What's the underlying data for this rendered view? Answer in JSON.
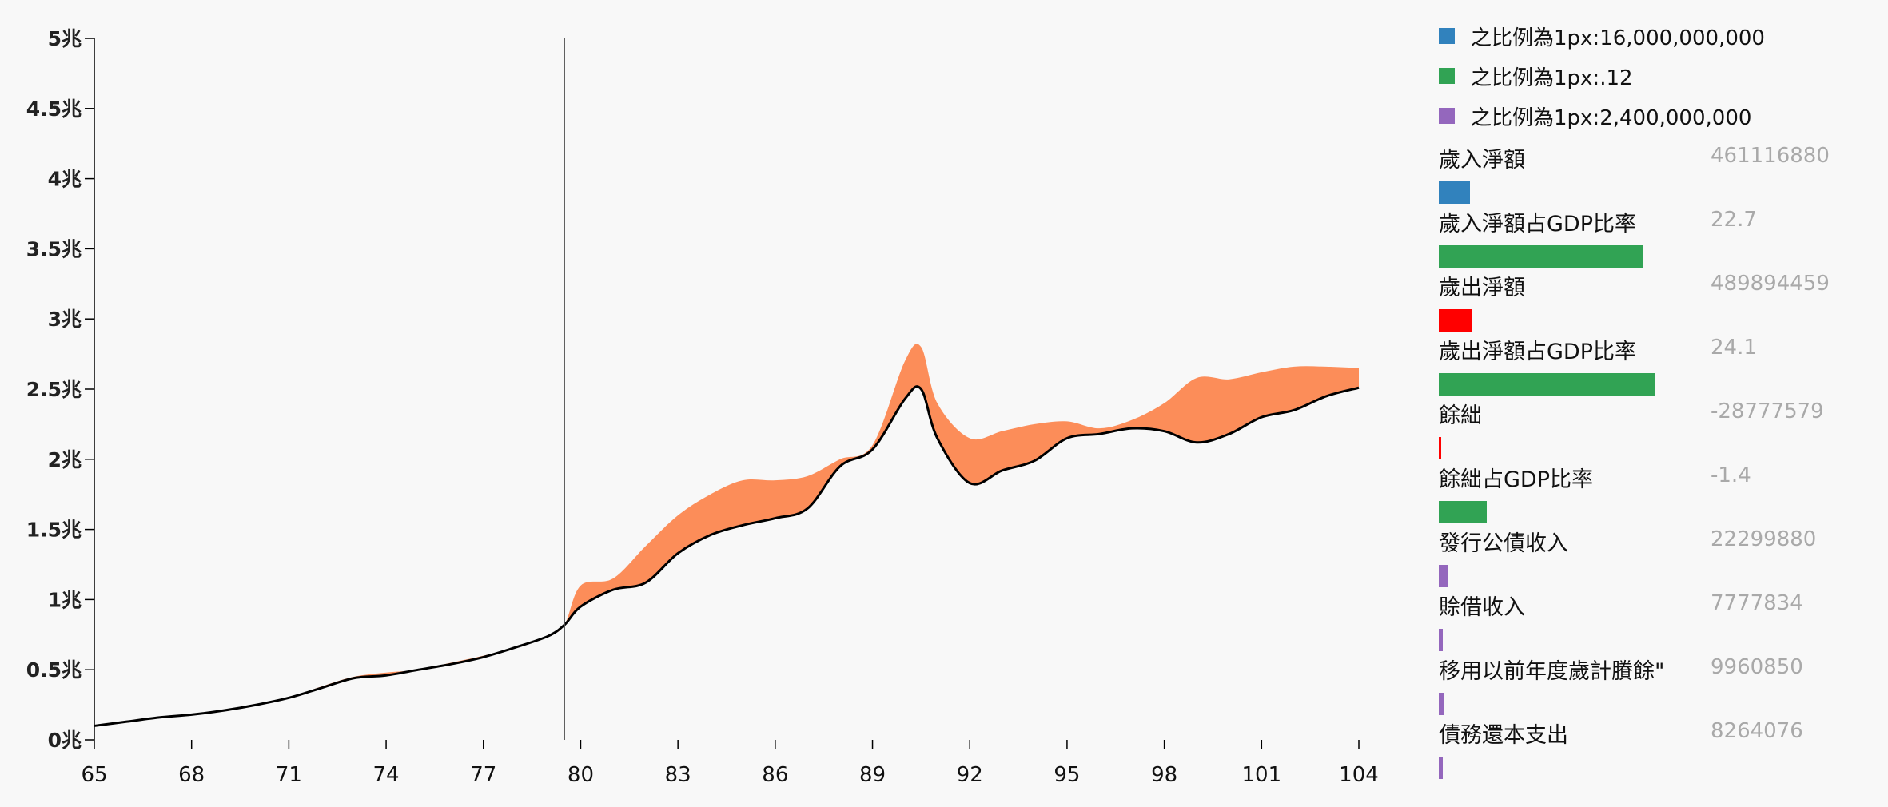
{
  "chart_data": {
    "type": "area",
    "y_axis": {
      "ticks": [
        "0兆",
        "0.5兆",
        "1兆",
        "1.5兆",
        "2兆",
        "2.5兆",
        "3兆",
        "3.5兆",
        "4兆",
        "4.5兆",
        "5兆"
      ],
      "min": 0,
      "max": 5,
      "unit": "兆"
    },
    "x_axis": {
      "ticks": [
        "65",
        "68",
        "71",
        "74",
        "77",
        "80",
        "83",
        "86",
        "89",
        "92",
        "95",
        "98",
        "101",
        "104"
      ],
      "min": 65,
      "max": 104
    },
    "cursor_year": 79.5,
    "series": [
      {
        "name": "歲出淨額",
        "color": "#fc8d59",
        "x": [
          65,
          66,
          67,
          68,
          69,
          70,
          71,
          72,
          73,
          74,
          75,
          76,
          77,
          78,
          79,
          79.5,
          80,
          81,
          82,
          83,
          84,
          85,
          86,
          87,
          88,
          89,
          90,
          90.5,
          91,
          92,
          93,
          94,
          95,
          96,
          97,
          98,
          99,
          100,
          101,
          102,
          103,
          104
        ],
        "values": [
          0.1,
          0.13,
          0.16,
          0.18,
          0.21,
          0.25,
          0.3,
          0.38,
          0.45,
          0.48,
          0.5,
          0.55,
          0.6,
          0.66,
          0.74,
          0.82,
          1.1,
          1.15,
          1.38,
          1.6,
          1.75,
          1.85,
          1.85,
          1.88,
          2.0,
          2.1,
          2.7,
          2.8,
          2.4,
          2.15,
          2.2,
          2.25,
          2.27,
          2.22,
          2.28,
          2.4,
          2.58,
          2.57,
          2.62,
          2.66,
          2.66,
          2.65
        ]
      },
      {
        "name": "歲入淨額",
        "color": "#000000",
        "x": [
          65,
          66,
          67,
          68,
          69,
          70,
          71,
          72,
          73,
          74,
          75,
          76,
          77,
          78,
          79,
          79.5,
          80,
          81,
          82,
          83,
          84,
          85,
          86,
          87,
          88,
          89,
          90,
          90.5,
          91,
          92,
          93,
          94,
          95,
          96,
          97,
          98,
          99,
          100,
          101,
          102,
          103,
          104
        ],
        "values": [
          0.1,
          0.13,
          0.16,
          0.18,
          0.21,
          0.25,
          0.3,
          0.37,
          0.44,
          0.46,
          0.5,
          0.54,
          0.59,
          0.66,
          0.74,
          0.82,
          0.95,
          1.07,
          1.12,
          1.33,
          1.46,
          1.53,
          1.58,
          1.65,
          1.95,
          2.07,
          2.43,
          2.5,
          2.15,
          1.83,
          1.92,
          1.99,
          2.15,
          2.18,
          2.22,
          2.2,
          2.12,
          2.18,
          2.3,
          2.35,
          2.45,
          2.51
        ]
      }
    ]
  },
  "legend": [
    {
      "label": "之比例為1px:16,000,000,000",
      "color": "#3182bd"
    },
    {
      "label": "之比例為1px:.12",
      "color": "#31a354"
    },
    {
      "label": "之比例為1px:2,400,000,000",
      "color": "#9467bd"
    }
  ],
  "metrics": [
    {
      "label": "歲入淨額",
      "value": "461116880",
      "bar_color": "#3182bd",
      "bar_fraction": 0.075
    },
    {
      "label": "歲入淨額占GDP比率",
      "value": "22.7",
      "bar_color": "#31a354",
      "bar_fraction": 0.49
    },
    {
      "label": "歲出淨額",
      "value": "489894459",
      "bar_color": "#ff0000",
      "bar_fraction": 0.08
    },
    {
      "label": "歲出淨額占GDP比率",
      "value": "24.1",
      "bar_color": "#31a354",
      "bar_fraction": 0.52
    },
    {
      "label": "餘絀",
      "value": "-28777579",
      "bar_color": "#ff0000",
      "bar_fraction": 0.006
    },
    {
      "label": "餘絀占GDP比率",
      "value": "-1.4",
      "bar_color": "#31a354",
      "bar_fraction": 0.115
    },
    {
      "label": "發行公債收入",
      "value": "22299880",
      "bar_color": "#9467bd",
      "bar_fraction": 0.024
    },
    {
      "label": "賒借收入",
      "value": "7777834",
      "bar_color": "#9467bd",
      "bar_fraction": 0.009
    },
    {
      "label": "移用以前年度歲計賸餘\"",
      "value": "9960850",
      "bar_color": "#9467bd",
      "bar_fraction": 0.011
    },
    {
      "label": "債務還本支出",
      "value": "8264076",
      "bar_color": "#9467bd",
      "bar_fraction": 0.009
    }
  ]
}
